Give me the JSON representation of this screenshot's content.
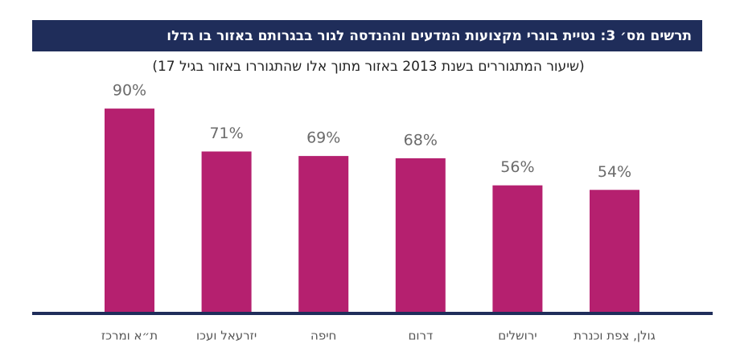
{
  "chart_data": {
    "type": "bar",
    "title": "תרשים מס׳ 3: נטיית בוגרי מקצועות המדעים וההנדסה לגור בבגרותם באזור בו גדלו",
    "subtitle": "(שיעור המתגוררים בשנת 2013 באזור מתוך אלו שהתגוררו באזור בגיל 17)",
    "categories": [
      "ת״א ומרכז",
      "יזרעאל ועכו",
      "חיפה",
      "דרום",
      "ירושלים",
      "גולן, צפת וכנרת"
    ],
    "values": [
      90,
      71,
      69,
      68,
      56,
      54
    ],
    "value_labels": [
      "90%",
      "71%",
      "69%",
      "68%",
      "56%",
      "54%"
    ],
    "color": "#b5206f"
  }
}
